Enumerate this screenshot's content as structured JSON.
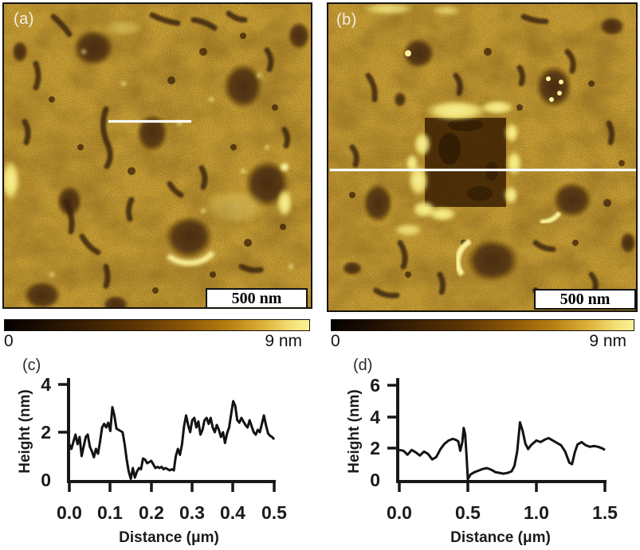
{
  "figure": {
    "description": "Four-panel AFM figure: two topography images with scale bars and color bars, two extracted height profiles",
    "panels": {
      "a": {
        "label": "(a)",
        "scale_bar": "500 nm",
        "colorbar": {
          "min": "0",
          "max": "9 nm"
        }
      },
      "b": {
        "label": "(b)",
        "scale_bar": "500 nm",
        "colorbar": {
          "min": "0",
          "max": "9 nm"
        }
      },
      "c": {
        "label": "(c)"
      },
      "d": {
        "label": "(d)"
      }
    },
    "colors": {
      "afm_base": "#9c6c08",
      "afm_dark_feature": "#42250a",
      "afm_bright_feature": "#f9ee7e",
      "profile_marker": "#ffffff",
      "plot_line": "#131313",
      "colorbar_gradient": [
        "#050200",
        "#1c0d01",
        "#3a2002",
        "#5f3604",
        "#8a5507",
        "#b57d12",
        "#dcb13a",
        "#f3e075",
        "#faf296"
      ]
    }
  },
  "chart_data": [
    {
      "id": "c",
      "type": "line",
      "panel_label": "(c)",
      "xlabel": "Distance (μm)",
      "ylabel": "Height (nm)",
      "xlim": [
        0.0,
        0.5
      ],
      "ylim": [
        0,
        4
      ],
      "xticks": [
        "0.0",
        "0.1",
        "0.2",
        "0.3",
        "0.4",
        "0.5"
      ],
      "yticks": [
        "4",
        "2",
        "0"
      ],
      "x": [
        0.0,
        0.005,
        0.01,
        0.015,
        0.02,
        0.025,
        0.03,
        0.035,
        0.04,
        0.045,
        0.05,
        0.055,
        0.06,
        0.065,
        0.07,
        0.075,
        0.08,
        0.085,
        0.09,
        0.095,
        0.1,
        0.105,
        0.11,
        0.115,
        0.12,
        0.125,
        0.13,
        0.135,
        0.14,
        0.145,
        0.15,
        0.155,
        0.16,
        0.165,
        0.17,
        0.175,
        0.18,
        0.185,
        0.19,
        0.195,
        0.2,
        0.205,
        0.21,
        0.215,
        0.22,
        0.225,
        0.23,
        0.235,
        0.24,
        0.245,
        0.25,
        0.255,
        0.26,
        0.265,
        0.27,
        0.275,
        0.28,
        0.285,
        0.29,
        0.295,
        0.3,
        0.305,
        0.31,
        0.315,
        0.32,
        0.325,
        0.33,
        0.335,
        0.34,
        0.345,
        0.35,
        0.355,
        0.36,
        0.365,
        0.37,
        0.375,
        0.38,
        0.385,
        0.39,
        0.395,
        0.4,
        0.405,
        0.41,
        0.415,
        0.42,
        0.425,
        0.43,
        0.435,
        0.44,
        0.445,
        0.45,
        0.455,
        0.46,
        0.465,
        0.47,
        0.475,
        0.48,
        0.485,
        0.49,
        0.495,
        0.5
      ],
      "y": [
        1.5,
        1.3,
        1.6,
        1.9,
        1.5,
        1.8,
        1.0,
        1.4,
        1.8,
        1.9,
        1.4,
        1.2,
        0.95,
        1.3,
        1.1,
        1.6,
        2.2,
        2.35,
        2.2,
        2.4,
        2.05,
        3.05,
        2.7,
        2.15,
        2.1,
        2.05,
        2.0,
        1.5,
        0.85,
        0.35,
        0.05,
        0.5,
        0.1,
        0.35,
        0.5,
        0.45,
        0.9,
        0.85,
        0.7,
        0.75,
        0.8,
        0.65,
        0.5,
        0.55,
        0.5,
        0.55,
        0.45,
        0.5,
        0.45,
        0.4,
        0.45,
        0.4,
        1.0,
        1.3,
        1.05,
        1.5,
        2.25,
        2.7,
        2.3,
        2.0,
        2.5,
        2.6,
        2.2,
        2.45,
        1.9,
        2.1,
        2.5,
        2.6,
        2.35,
        2.6,
        2.2,
        2.0,
        2.3,
        2.1,
        1.8,
        2.0,
        1.55,
        1.95,
        2.2,
        2.75,
        3.3,
        3.1,
        2.5,
        2.4,
        2.6,
        2.45,
        2.3,
        2.2,
        2.5,
        2.25,
        2.0,
        1.9,
        2.1,
        2.0,
        2.35,
        2.7,
        2.3,
        1.95,
        1.85,
        1.8,
        1.7
      ]
    },
    {
      "id": "d",
      "type": "line",
      "panel_label": "(d)",
      "xlabel": "Distance (μm)",
      "ylabel": "Height (nm)",
      "xlim": [
        0.0,
        1.5
      ],
      "ylim": [
        0,
        6
      ],
      "xticks": [
        "0.0",
        "0.5",
        "1.0",
        "1.5"
      ],
      "yticks": [
        "6",
        "4",
        "2",
        "0"
      ],
      "x": [
        0.0,
        0.03,
        0.06,
        0.09,
        0.12,
        0.15,
        0.18,
        0.21,
        0.24,
        0.27,
        0.3,
        0.33,
        0.36,
        0.39,
        0.41,
        0.43,
        0.445,
        0.46,
        0.47,
        0.48,
        0.49,
        0.5,
        0.52,
        0.55,
        0.58,
        0.61,
        0.64,
        0.67,
        0.7,
        0.73,
        0.76,
        0.79,
        0.82,
        0.84,
        0.86,
        0.88,
        0.9,
        0.92,
        0.94,
        0.96,
        0.98,
        1.0,
        1.03,
        1.06,
        1.09,
        1.12,
        1.15,
        1.18,
        1.21,
        1.24,
        1.26,
        1.28,
        1.3,
        1.33,
        1.36,
        1.39,
        1.42,
        1.45,
        1.48,
        1.5
      ],
      "y": [
        1.9,
        1.85,
        1.6,
        1.9,
        1.75,
        1.55,
        1.8,
        1.65,
        1.3,
        1.45,
        1.95,
        2.3,
        2.5,
        2.6,
        2.55,
        2.45,
        1.85,
        2.4,
        3.3,
        2.9,
        1.6,
        0.05,
        0.35,
        0.5,
        0.6,
        0.7,
        0.75,
        0.65,
        0.5,
        0.45,
        0.4,
        0.45,
        0.55,
        0.9,
        1.8,
        3.65,
        3.1,
        2.3,
        1.95,
        2.2,
        2.35,
        2.5,
        2.4,
        2.55,
        2.65,
        2.5,
        2.35,
        2.2,
        1.8,
        1.1,
        1.0,
        1.75,
        2.25,
        2.4,
        2.2,
        2.1,
        2.15,
        2.1,
        2.0,
        1.9
      ]
    }
  ]
}
